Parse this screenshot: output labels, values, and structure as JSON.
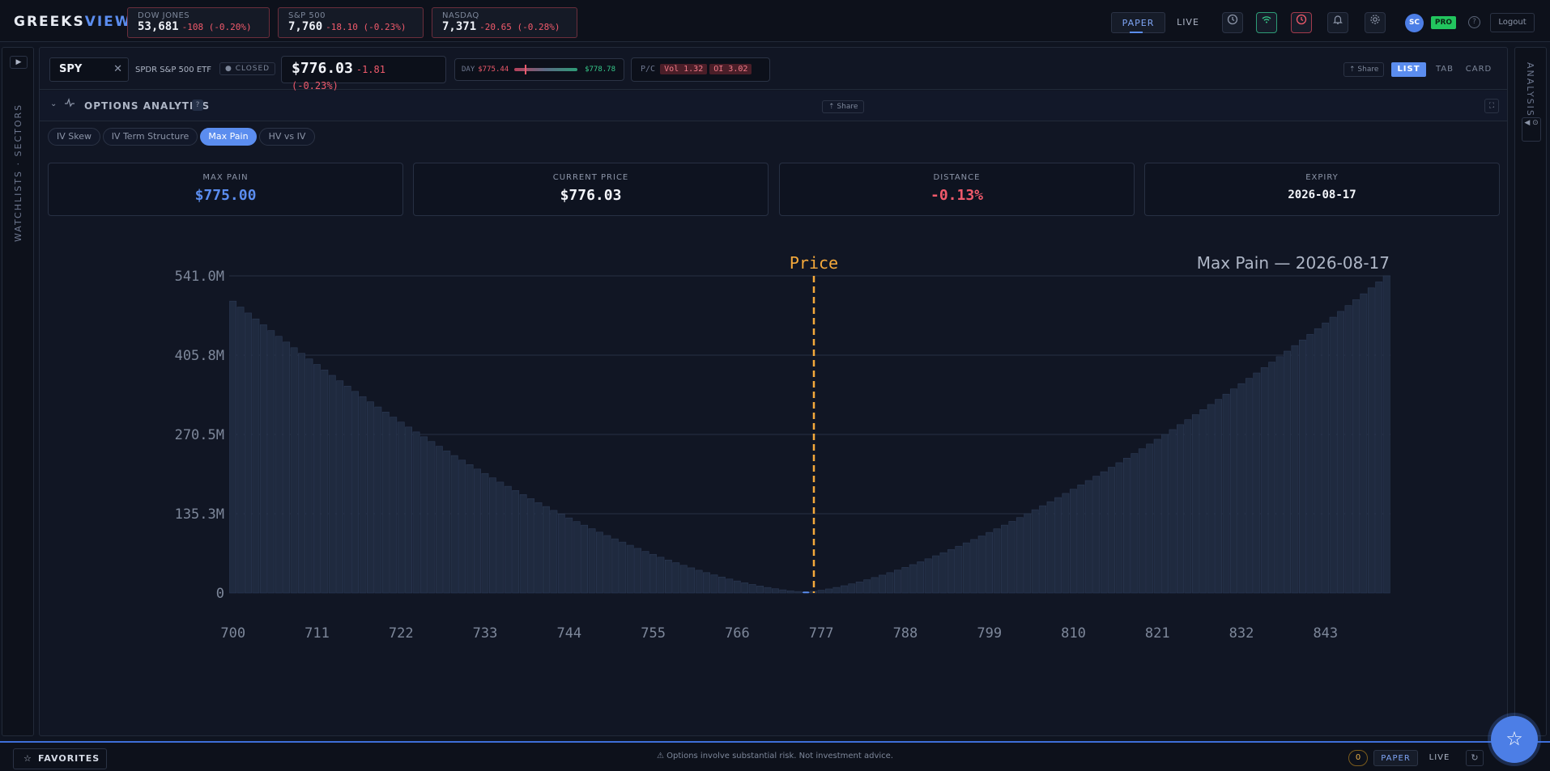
{
  "app": {
    "logo_main": "GREEKS",
    "logo_accent": "VIEW"
  },
  "indices": [
    {
      "name": "DOW JONES",
      "value": "53,681",
      "change": "-108 (-0.20%)"
    },
    {
      "name": "S&P 500",
      "value": "7,760",
      "change": "-18.10 (-0.23%)"
    },
    {
      "name": "NASDAQ",
      "value": "7,371",
      "change": "-20.65 (-0.28%)"
    }
  ],
  "header": {
    "mode_paper": "PAPER",
    "mode_live": "LIVE",
    "avatar": "SC",
    "pro_badge": "PRO",
    "help": "?",
    "logout": "Logout"
  },
  "left_rail": {
    "play": "▶",
    "label": "WATCHLISTS · SECTORS"
  },
  "right_rail": {
    "label": "ANALYSIS",
    "button": "◀ ⊙"
  },
  "ticker": {
    "symbol": "SPY",
    "clear": "✕",
    "name": "SPDR S&P 500 ETF",
    "status": "● CLOSED",
    "price": "$776.03",
    "change": "-1.81 (-0.23%)",
    "day_label": "DAY",
    "day_low": "$775.44",
    "day_high": "$778.78",
    "day_position": 0.17,
    "pc_label": "P/C",
    "pc_vol": "Vol 1.32",
    "pc_oi": "OI 3.02",
    "share": "⇡ Share",
    "views": [
      "LIST",
      "TAB",
      "CARD"
    ],
    "active_view": "LIST"
  },
  "analytics": {
    "chevron": "⌄",
    "title": "OPTIONS ANALYTICS",
    "help": "?",
    "share": "⇡ Share",
    "fullscreen": "⛶",
    "tabs": [
      "IV Skew",
      "IV Term Structure",
      "Max Pain",
      "HV vs IV"
    ],
    "active_tab": "Max Pain"
  },
  "stats": [
    {
      "label": "MAX PAIN",
      "value": "$775.00",
      "color": "#5b8def"
    },
    {
      "label": "CURRENT PRICE",
      "value": "$776.03",
      "color": "#f3f5fa"
    },
    {
      "label": "DISTANCE",
      "value": "-0.13%",
      "color": "#f05a6b"
    },
    {
      "label": "EXPIRY",
      "value": "2026-08-17",
      "color": "#f3f5fa"
    }
  ],
  "chart_data": {
    "type": "bar",
    "title": "Max Pain — 2026-08-17",
    "price_label": "Price",
    "xlabel": "",
    "ylabel": "",
    "y_ticks": [
      "0",
      "135.3M",
      "270.5M",
      "405.8M",
      "541.0M"
    ],
    "ylim": [
      0,
      541.0
    ],
    "y_unit": "M",
    "x_ticks": [
      "700",
      "711",
      "722",
      "733",
      "744",
      "755",
      "766",
      "777",
      "788",
      "799",
      "810",
      "821",
      "832",
      "843"
    ],
    "strike_start": 700,
    "strike_end": 851,
    "strike_step": 1,
    "max_pain_strike": 775,
    "current_price": 776.03,
    "left_edge_value": 498,
    "right_edge_value": 541,
    "min_value": 2,
    "bar_color": "#1f2a3f",
    "bar_edge_color": "#2c3a55",
    "highlight_color": "#5b8def",
    "price_line_color": "#f5a93b",
    "grid": true
  },
  "footer": {
    "favorites": "FAVORITES",
    "star": "☆",
    "disclaimer": "⚠ Options involve substantial risk. Not investment advice.",
    "count": "0",
    "paper": "PAPER",
    "live": "LIVE",
    "refresh": "↻",
    "fab": "☆"
  }
}
